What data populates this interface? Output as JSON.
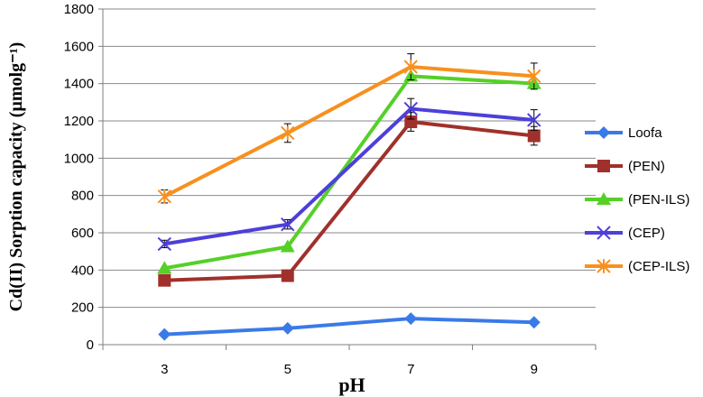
{
  "chart_data": {
    "type": "line",
    "title": "",
    "xlabel": "pH",
    "ylabel": "Cd(II) Sorption capacity (µmolg⁻¹)",
    "categories": [
      "3",
      "5",
      "7",
      "9"
    ],
    "ylim": [
      0,
      1800
    ],
    "yticks": [
      "0",
      "200",
      "400",
      "600",
      "800",
      "1000",
      "1200",
      "1400",
      "1600",
      "1800"
    ],
    "grid": "horizontal",
    "legend_position": "right",
    "series": [
      {
        "name": "Loofa",
        "values": [
          55,
          88,
          140,
          120
        ],
        "errors": [
          0,
          0,
          0,
          0
        ],
        "color": "#3a7ae8",
        "marker": "diamond"
      },
      {
        "name": "(PEN)",
        "values": [
          345,
          370,
          1195,
          1120
        ],
        "errors": [
          0,
          0,
          50,
          50
        ],
        "color": "#a0302b",
        "marker": "square"
      },
      {
        "name": "(PEN-ILS)",
        "values": [
          410,
          525,
          1440,
          1400
        ],
        "errors": [
          0,
          0,
          0,
          0
        ],
        "color": "#55d028",
        "marker": "triangle"
      },
      {
        "name": "(CEP)",
        "values": [
          540,
          645,
          1265,
          1205
        ],
        "errors": [
          20,
          25,
          55,
          55
        ],
        "color": "#4d3fd9",
        "marker": "x"
      },
      {
        "name": "(CEP-ILS)",
        "values": [
          795,
          1135,
          1490,
          1440
        ],
        "errors": [
          35,
          50,
          70,
          70
        ],
        "color": "#f7901e",
        "marker": "star"
      }
    ]
  }
}
